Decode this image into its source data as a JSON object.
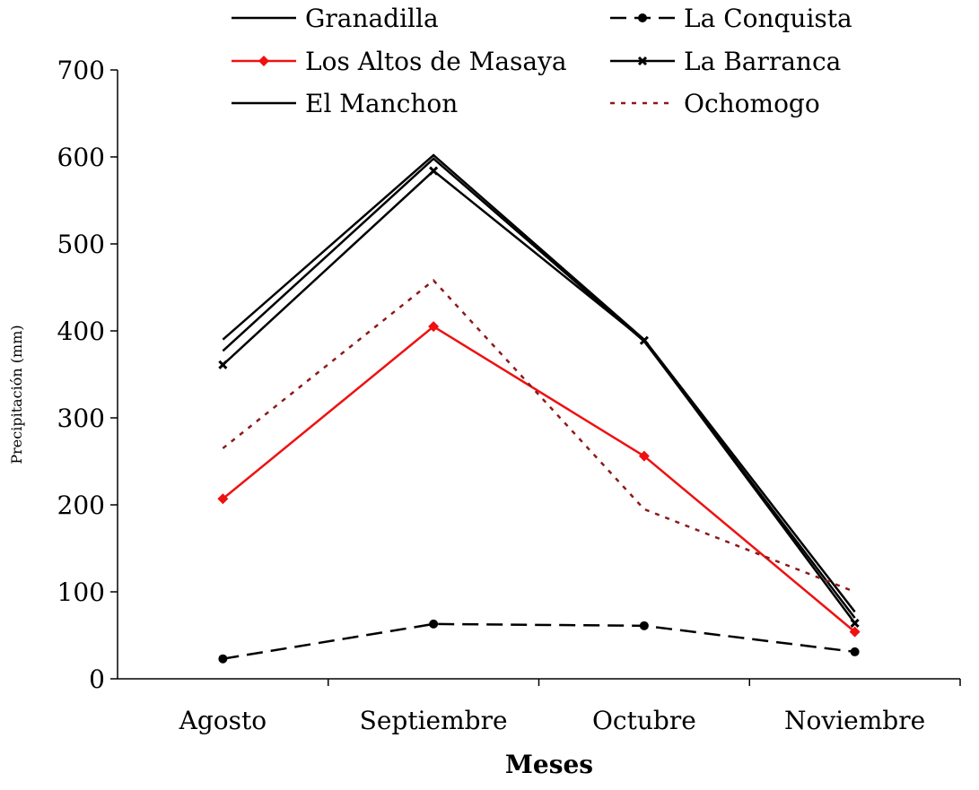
{
  "chart_data": {
    "type": "line",
    "categories": [
      "Agosto",
      "Septiembre",
      "Octubre",
      "Noviembre"
    ],
    "x_label": "Meses",
    "y_label": "Precipitación (mm)",
    "ylim": [
      0,
      700
    ],
    "yticks": [
      0,
      100,
      200,
      300,
      400,
      500,
      600,
      700
    ],
    "series": [
      {
        "name": "Granadilla",
        "color": "#000000",
        "dash": "none",
        "marker": "none",
        "values": [
          390,
          602,
          390,
          77
        ]
      },
      {
        "name": "La Conquista",
        "color": "#000000",
        "dash": "18,9",
        "marker": "circle",
        "values": [
          23,
          63,
          61,
          31
        ]
      },
      {
        "name": "Los Altos de Masaya",
        "color": "#ee1111",
        "dash": "none",
        "marker": "diamond",
        "values": [
          207,
          405,
          256,
          54
        ]
      },
      {
        "name": "La Barranca",
        "color": "#000000",
        "dash": "none",
        "marker": "x",
        "values": [
          361,
          584,
          389,
          64
        ]
      },
      {
        "name": "El Manchon",
        "color": "#000000",
        "dash": "none",
        "marker": "none",
        "values": [
          377,
          598,
          388,
          70
        ]
      },
      {
        "name": "Ochomogo",
        "color": "#8b1a1a",
        "dash": "5,7",
        "marker": "none",
        "values": [
          265,
          458,
          195,
          100
        ]
      }
    ]
  }
}
